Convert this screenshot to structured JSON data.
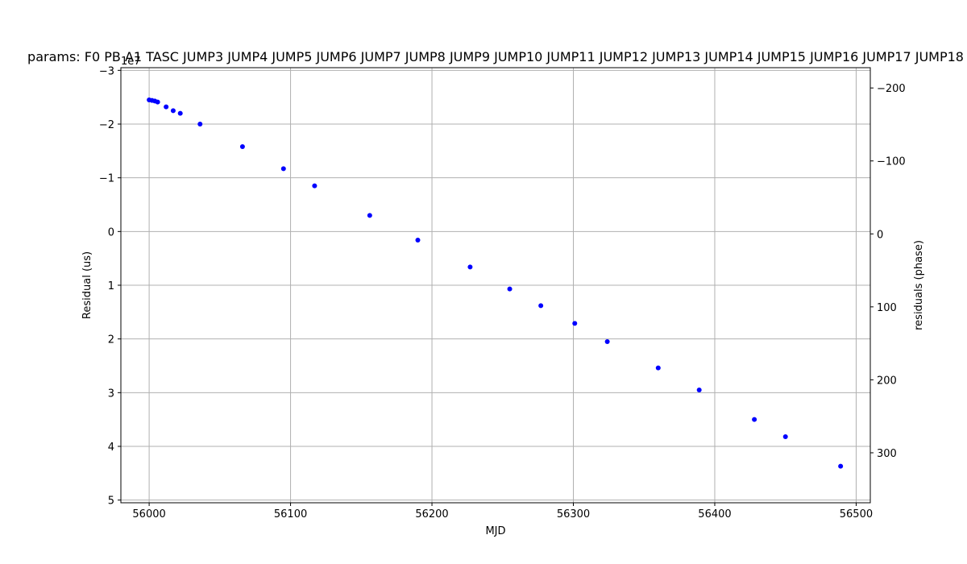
{
  "chart_data": {
    "type": "scatter",
    "title": "params: F0 PB A1 TASC JUMP3 JUMP4 JUMP5 JUMP6 JUMP7 JUMP8 JUMP9 JUMP10 JUMP11 JUMP12 JUMP13 JUMP14 JUMP15 JUMP16 JUMP17 JUMP18",
    "xlabel": "MJD",
    "ylabel": "Residual (us)",
    "ylabel_right": "residuals (phase)",
    "offset_label": "1e7",
    "xlim": [
      55980,
      56510
    ],
    "ylim": [
      5.05,
      -3.05
    ],
    "ylim_right": [
      368.5,
      -227.8
    ],
    "xticks": [
      56000,
      56100,
      56200,
      56300,
      56400,
      56500
    ],
    "yticks": [
      -3,
      -2,
      -1,
      0,
      1,
      2,
      3,
      4,
      5
    ],
    "yticks_right": [
      -200,
      -100,
      0,
      100,
      200,
      300
    ],
    "grid": true,
    "marker_color": "#0000ff",
    "points": [
      {
        "x": 56000,
        "y": -2.45
      },
      {
        "x": 56002,
        "y": -2.44
      },
      {
        "x": 56004,
        "y": -2.43
      },
      {
        "x": 56006,
        "y": -2.41
      },
      {
        "x": 56012,
        "y": -2.32
      },
      {
        "x": 56017,
        "y": -2.25
      },
      {
        "x": 56022,
        "y": -2.2
      },
      {
        "x": 56036,
        "y": -2.0
      },
      {
        "x": 56066,
        "y": -1.58
      },
      {
        "x": 56095,
        "y": -1.17
      },
      {
        "x": 56117,
        "y": -0.85
      },
      {
        "x": 56156,
        "y": -0.3
      },
      {
        "x": 56190,
        "y": 0.16
      },
      {
        "x": 56227,
        "y": 0.66
      },
      {
        "x": 56255,
        "y": 1.07
      },
      {
        "x": 56277,
        "y": 1.38
      },
      {
        "x": 56301,
        "y": 1.71
      },
      {
        "x": 56324,
        "y": 2.05
      },
      {
        "x": 56360,
        "y": 2.54
      },
      {
        "x": 56389,
        "y": 2.95
      },
      {
        "x": 56428,
        "y": 3.5
      },
      {
        "x": 56450,
        "y": 3.82
      },
      {
        "x": 56489,
        "y": 4.37
      }
    ]
  }
}
